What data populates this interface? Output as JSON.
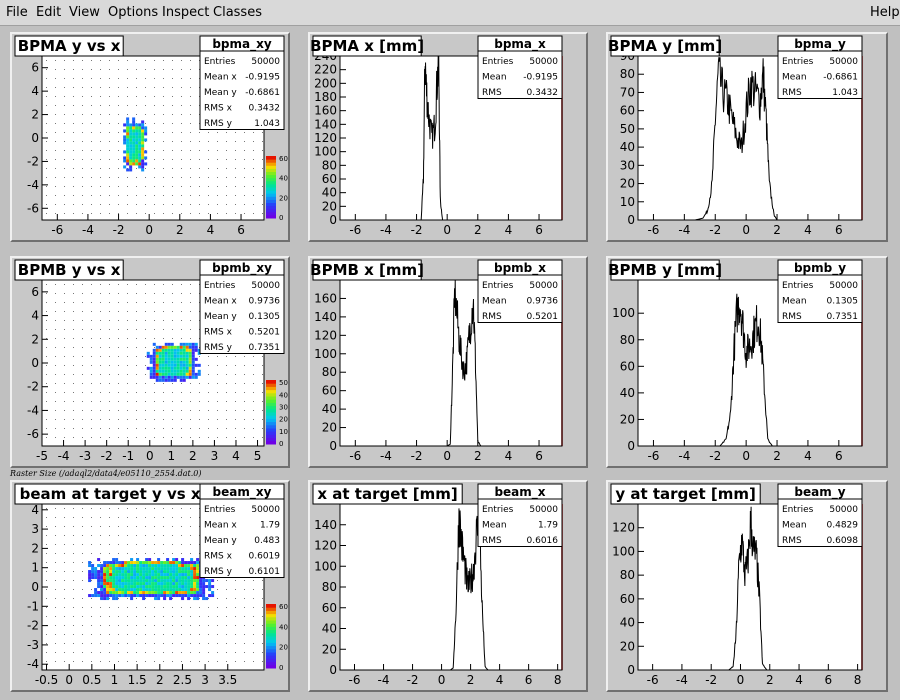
{
  "menubar": {
    "items": [
      "File",
      "Edit",
      "View",
      "Options",
      "Inspect",
      "Classes"
    ],
    "help": "Help"
  },
  "raster_note": "Raster Size (/adaql2/data4/e05110_2554.dat.0)",
  "palette_ticks": {
    "row1": [
      "60",
      "40",
      "20",
      "0"
    ],
    "row2": [
      "50",
      "40",
      "30",
      "20",
      "10",
      "0"
    ],
    "row3": [
      "60",
      "40",
      "20",
      "0"
    ]
  },
  "chart_data": [
    {
      "type": "heatmap",
      "title": "BPMA y vs x",
      "xlim": [
        -7,
        7.5
      ],
      "ylim": [
        -7,
        7
      ],
      "xticks": [
        -6,
        -4,
        -2,
        0,
        2,
        4,
        6
      ],
      "yticks": [
        -6,
        -4,
        -2,
        0,
        2,
        4,
        6
      ],
      "stats": {
        "name": "bpma_xy",
        "Entries": "50000",
        "Mean x": "-0.9195",
        "Mean y": "-0.6861",
        "RMS x": "0.3432",
        "RMS y": "1.043"
      },
      "blob": {
        "x0": -1.7,
        "x1": -0.4,
        "y0": -2.4,
        "y1": 1.5
      }
    },
    {
      "type": "line",
      "title": "BPMA x [mm]",
      "xlim": [
        -7,
        7.5
      ],
      "ylim": [
        0,
        240
      ],
      "xticks": [
        -6,
        -4,
        -2,
        0,
        2,
        4,
        6
      ],
      "yticks": [
        0,
        20,
        40,
        60,
        80,
        100,
        120,
        140,
        160,
        180,
        200,
        220,
        240
      ],
      "stats": {
        "name": "bpma_x",
        "Entries": "50000",
        "Mean": "-0.9195",
        "RMS": "0.3432"
      },
      "x": [
        -2.0,
        -1.7,
        -1.55,
        -1.45,
        -1.35,
        -1.2,
        -1.0,
        -0.8,
        -0.65,
        -0.55,
        -0.45,
        -0.3,
        0.0
      ],
      "y": [
        0,
        0,
        60,
        235,
        190,
        150,
        120,
        140,
        205,
        230,
        30,
        0,
        0
      ]
    },
    {
      "type": "line",
      "title": "BPMA y [mm]",
      "xlim": [
        -7,
        7.5
      ],
      "ylim": [
        0,
        90
      ],
      "xticks": [
        -6,
        -4,
        -2,
        0,
        2,
        4,
        6
      ],
      "yticks": [
        0,
        10,
        20,
        30,
        40,
        50,
        60,
        70,
        80,
        90
      ],
      "stats": {
        "name": "bpma_y",
        "Entries": "50000",
        "Mean": "-0.6861",
        "RMS": "1.043"
      },
      "x": [
        -3.3,
        -2.8,
        -2.5,
        -2.2,
        -2.0,
        -1.8,
        -1.5,
        -1.2,
        -0.9,
        -0.6,
        -0.3,
        0.0,
        0.3,
        0.6,
        0.9,
        1.1,
        1.3,
        1.5,
        1.8,
        2.0
      ],
      "y": [
        0,
        1,
        5,
        20,
        55,
        80,
        70,
        65,
        55,
        45,
        40,
        60,
        75,
        70,
        65,
        80,
        55,
        20,
        3,
        0
      ]
    },
    {
      "type": "heatmap",
      "title": "BPMB y vs x",
      "xlim": [
        -5,
        5.3
      ],
      "ylim": [
        -7,
        7
      ],
      "xticks": [
        -5,
        -4,
        -3,
        -2,
        -1,
        0,
        1,
        2,
        3,
        4,
        5
      ],
      "yticks": [
        -6,
        -4,
        -2,
        0,
        2,
        4,
        6
      ],
      "stats": {
        "name": "bpmb_xy",
        "Entries": "50000",
        "Mean x": "0.9736",
        "Mean y": "0.1305",
        "RMS x": "0.5201",
        "RMS y": "0.7351"
      },
      "blob": {
        "x0": 0.0,
        "x1": 2.1,
        "y0": -1.3,
        "y1": 1.7
      }
    },
    {
      "type": "line",
      "title": "BPMB x [mm]",
      "xlim": [
        -7,
        7.5
      ],
      "ylim": [
        0,
        180
      ],
      "xticks": [
        -6,
        -4,
        -2,
        0,
        2,
        4,
        6
      ],
      "yticks": [
        0,
        20,
        40,
        60,
        80,
        100,
        120,
        140,
        160
      ],
      "stats": {
        "name": "bpmb_x",
        "Entries": "50000",
        "Mean": "0.9736",
        "RMS": "0.5201"
      },
      "x": [
        0.0,
        0.2,
        0.35,
        0.5,
        0.7,
        0.9,
        1.1,
        1.3,
        1.5,
        1.7,
        1.85,
        2.0,
        2.2
      ],
      "y": [
        0,
        2,
        80,
        170,
        130,
        100,
        80,
        95,
        130,
        160,
        90,
        5,
        0
      ]
    },
    {
      "type": "line",
      "title": "BPMB y [mm]",
      "xlim": [
        -7,
        7.5
      ],
      "ylim": [
        0,
        125
      ],
      "xticks": [
        -6,
        -4,
        -2,
        0,
        2,
        4,
        6
      ],
      "yticks": [
        0,
        20,
        40,
        60,
        80,
        100
      ],
      "stats": {
        "name": "bpmb_y",
        "Entries": "50000",
        "Mean": "0.1305",
        "RMS": "0.7351"
      },
      "x": [
        -1.7,
        -1.3,
        -1.0,
        -0.8,
        -0.6,
        -0.4,
        -0.2,
        0.0,
        0.2,
        0.4,
        0.6,
        0.8,
        1.0,
        1.2,
        1.4,
        1.7
      ],
      "y": [
        0,
        5,
        25,
        70,
        100,
        110,
        90,
        70,
        75,
        80,
        90,
        95,
        75,
        40,
        5,
        0
      ]
    },
    {
      "type": "heatmap",
      "title": "beam at target y vs x",
      "xlim": [
        -0.6,
        4.3
      ],
      "ylim": [
        -4.3,
        4.3
      ],
      "xticks": [
        -0.5,
        0,
        0.5,
        1,
        1.5,
        2,
        2.5,
        3,
        3.5
      ],
      "yticks": [
        -4,
        -3,
        -2,
        -1,
        0,
        1,
        2,
        3,
        4
      ],
      "stats": {
        "name": "beam_xy",
        "Entries": "50000",
        "Mean x": "1.79",
        "Mean y": "0.483",
        "RMS x": "0.6019",
        "RMS y": "0.6101"
      },
      "blob": {
        "x0": 0.55,
        "x1": 3.05,
        "y0": -0.5,
        "y1": 1.5
      }
    },
    {
      "type": "line",
      "title": "x at target [mm]",
      "xlim": [
        -7,
        8.3
      ],
      "ylim": [
        0,
        160
      ],
      "xticks": [
        -6,
        -4,
        -2,
        0,
        2,
        4,
        6,
        8
      ],
      "yticks": [
        0,
        20,
        40,
        60,
        80,
        100,
        120,
        140
      ],
      "stats": {
        "name": "beam_x",
        "Entries": "50000",
        "Mean": "1.79",
        "RMS": "0.6016"
      },
      "x": [
        0.6,
        0.8,
        1.0,
        1.2,
        1.4,
        1.6,
        1.8,
        2.0,
        2.2,
        2.4,
        2.6,
        2.8,
        3.0,
        3.2
      ],
      "y": [
        0,
        2,
        60,
        150,
        120,
        100,
        80,
        85,
        95,
        130,
        145,
        60,
        3,
        0
      ]
    },
    {
      "type": "line",
      "title": "y at target [mm]",
      "xlim": [
        -7,
        8.3
      ],
      "ylim": [
        0,
        140
      ],
      "xticks": [
        -6,
        -4,
        -2,
        0,
        2,
        4,
        6,
        8
      ],
      "yticks": [
        0,
        20,
        40,
        60,
        80,
        100,
        120
      ],
      "stats": {
        "name": "beam_y",
        "Entries": "50000",
        "Mean": "0.4829",
        "RMS": "0.6098"
      },
      "x": [
        -0.8,
        -0.5,
        -0.3,
        -0.1,
        0.1,
        0.3,
        0.5,
        0.7,
        0.9,
        1.1,
        1.3,
        1.5,
        1.8
      ],
      "y": [
        0,
        3,
        30,
        90,
        110,
        80,
        90,
        125,
        100,
        95,
        60,
        5,
        0
      ]
    }
  ]
}
